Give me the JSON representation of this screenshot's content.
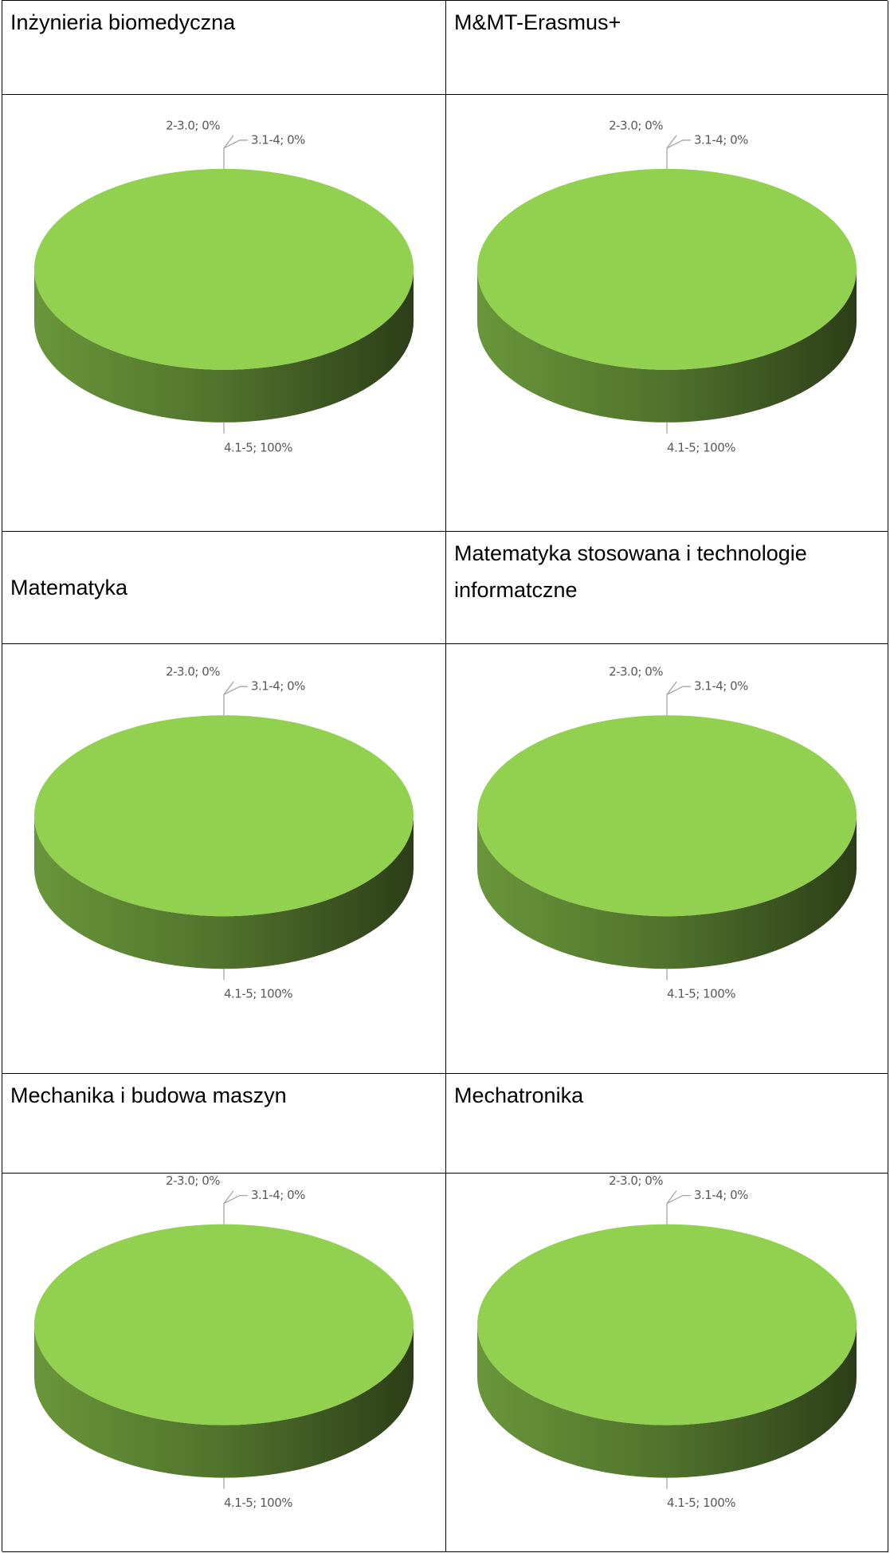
{
  "chart_data": [
    {
      "type": "pie",
      "title": "Inżynieria biomedyczna",
      "categories": [
        "2-3.0",
        "3.1-4",
        "4.1-5"
      ],
      "values": [
        0,
        0,
        100
      ],
      "value_labels": [
        "2-3.0; 0%",
        "3.1-4; 0%",
        "4.1-5; 100%"
      ],
      "colors": [
        "#4472c4",
        "#ed7d31",
        "#92d050"
      ]
    },
    {
      "type": "pie",
      "title": "M&MT-Erasmus+",
      "categories": [
        "2-3.0",
        "3.1-4",
        "4.1-5"
      ],
      "values": [
        0,
        0,
        100
      ],
      "value_labels": [
        "2-3.0; 0%",
        "3.1-4; 0%",
        "4.1-5; 100%"
      ],
      "colors": [
        "#4472c4",
        "#ed7d31",
        "#92d050"
      ]
    },
    {
      "type": "pie",
      "title": "Matematyka",
      "categories": [
        "2-3.0",
        "3.1-4",
        "4.1-5"
      ],
      "values": [
        0,
        0,
        100
      ],
      "value_labels": [
        "2-3.0; 0%",
        "3.1-4; 0%",
        "4.1-5; 100%"
      ],
      "colors": [
        "#4472c4",
        "#ed7d31",
        "#92d050"
      ]
    },
    {
      "type": "pie",
      "title": "Matematyka stosowana i technologie informatczne",
      "categories": [
        "2-3.0",
        "3.1-4",
        "4.1-5"
      ],
      "values": [
        0,
        0,
        100
      ],
      "value_labels": [
        "2-3.0; 0%",
        "3.1-4; 0%",
        "4.1-5; 100%"
      ],
      "colors": [
        "#4472c4",
        "#ed7d31",
        "#92d050"
      ]
    },
    {
      "type": "pie",
      "title": "Mechanika i budowa maszyn",
      "categories": [
        "2-3.0",
        "3.1-4",
        "4.1-5"
      ],
      "values": [
        0,
        0,
        100
      ],
      "value_labels": [
        "2-3.0; 0%",
        "3.1-4; 0%",
        "4.1-5; 100%"
      ],
      "colors": [
        "#4472c4",
        "#ed7d31",
        "#92d050"
      ]
    },
    {
      "type": "pie",
      "title": "Mechatronika",
      "categories": [
        "2-3.0",
        "3.1-4",
        "4.1-5"
      ],
      "values": [
        0,
        0,
        100
      ],
      "value_labels": [
        "2-3.0; 0%",
        "3.1-4; 0%",
        "4.1-5; 100%"
      ],
      "colors": [
        "#4472c4",
        "#ed7d31",
        "#92d050"
      ]
    }
  ]
}
